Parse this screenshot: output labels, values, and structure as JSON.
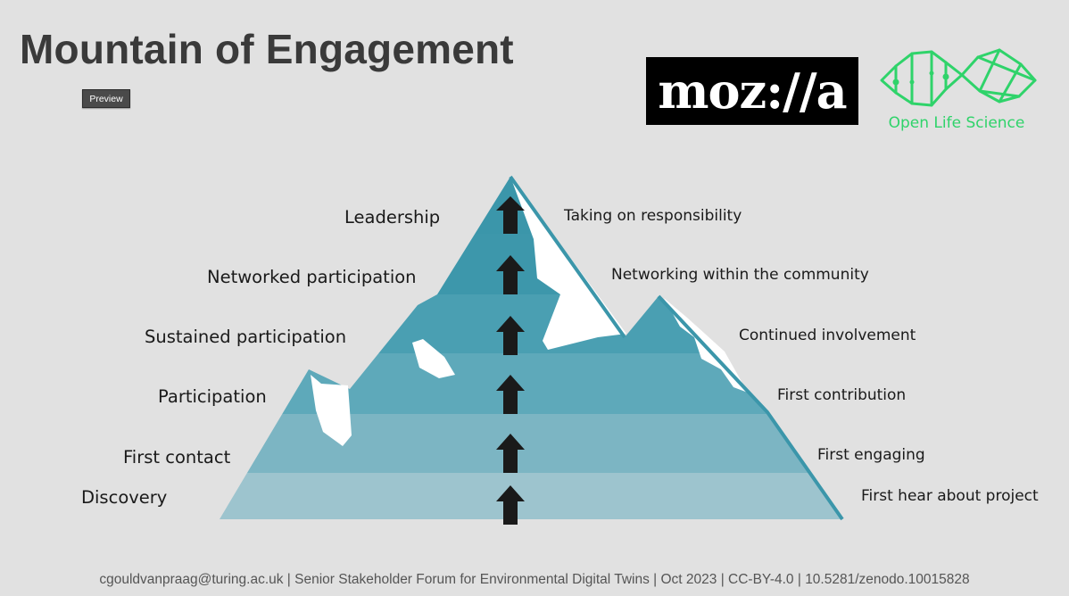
{
  "slide": {
    "title": "Mountain of Engagement",
    "preview_button": "Preview"
  },
  "logos": {
    "mozilla": "moz://a",
    "open_life_science": "Open Life Science"
  },
  "colors": {
    "background": "#e1e1e1",
    "title_text": "#3a3a3a",
    "ols_green": "#2fd36a",
    "arrow": "#1a1a1a",
    "snow": "#ffffff",
    "band_leadership": "#3b96aa",
    "band_networked": "#3d97ab",
    "band_sustained": "#4a9fb2",
    "band_participation": "#5ea9ba",
    "band_first_contact": "#7cb5c3",
    "band_discovery": "#9dc4ce"
  },
  "stages": [
    {
      "stage": "Leadership",
      "description": "Taking on responsibility"
    },
    {
      "stage": "Networked participation",
      "description": "Networking within the community"
    },
    {
      "stage": "Sustained participation",
      "description": "Continued involvement"
    },
    {
      "stage": "Participation",
      "description": "First contribution"
    },
    {
      "stage": "First contact",
      "description": "First engaging"
    },
    {
      "stage": "Discovery",
      "description": "First hear about project"
    }
  ],
  "footer": "cgouldvanpraag@turing.ac.uk  |  Senior Stakeholder Forum for Environmental Digital Twins  | Oct 2023 | CC-BY-4.0 | 10.5281/zenodo.10015828"
}
